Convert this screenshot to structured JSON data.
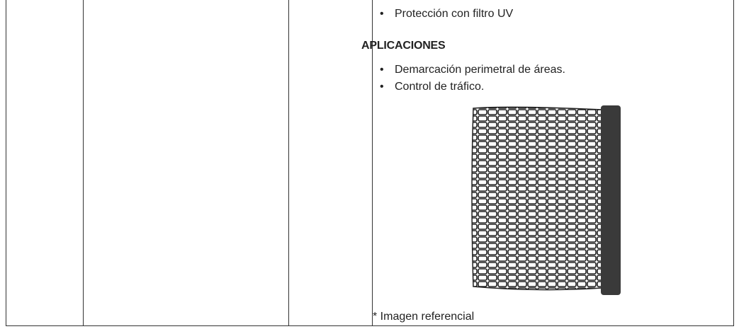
{
  "cell": {
    "features": [
      "Protección con filtro UV"
    ],
    "heading": "APLICACIONES",
    "applications": [
      "Demarcación perimetral de áreas.",
      "Control de tráfico."
    ],
    "caption": "* Imagen referencial"
  }
}
